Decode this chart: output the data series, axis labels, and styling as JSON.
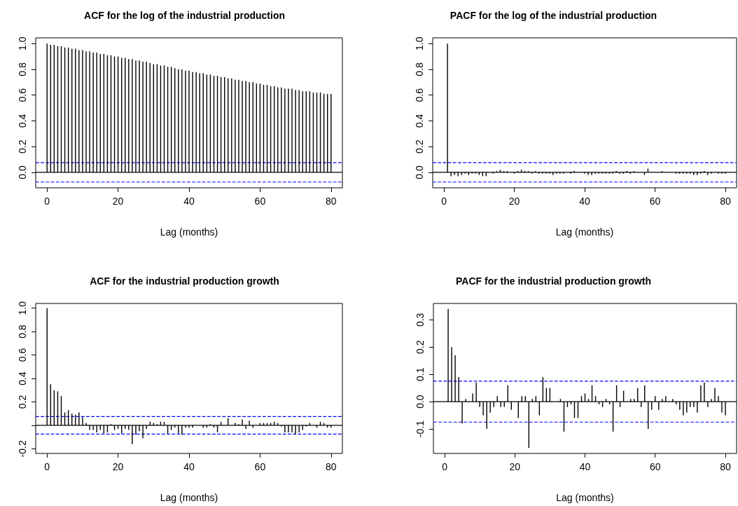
{
  "chart_data": [
    {
      "type": "bar",
      "title": "ACF for the log of the industrial production",
      "xlabel": "Lag (months)",
      "x": [
        0,
        1,
        2,
        3,
        4,
        5,
        6,
        7,
        8,
        9,
        10,
        11,
        12,
        13,
        14,
        15,
        16,
        17,
        18,
        19,
        20,
        21,
        22,
        23,
        24,
        25,
        26,
        27,
        28,
        29,
        30,
        31,
        32,
        33,
        34,
        35,
        36,
        37,
        38,
        39,
        40,
        41,
        42,
        43,
        44,
        45,
        46,
        47,
        48,
        49,
        50,
        51,
        52,
        53,
        54,
        55,
        56,
        57,
        58,
        59,
        60,
        61,
        62,
        63,
        64,
        65,
        66,
        67,
        68,
        69,
        70,
        71,
        72,
        73,
        74,
        75,
        76,
        77,
        78,
        79,
        80
      ],
      "values": [
        1,
        0.99,
        0.99,
        0.98,
        0.98,
        0.97,
        0.97,
        0.96,
        0.96,
        0.95,
        0.95,
        0.94,
        0.94,
        0.93,
        0.93,
        0.92,
        0.92,
        0.91,
        0.91,
        0.9,
        0.9,
        0.89,
        0.89,
        0.88,
        0.88,
        0.87,
        0.87,
        0.86,
        0.86,
        0.85,
        0.84,
        0.84,
        0.83,
        0.83,
        0.82,
        0.82,
        0.81,
        0.8,
        0.8,
        0.79,
        0.79,
        0.78,
        0.78,
        0.77,
        0.77,
        0.76,
        0.76,
        0.75,
        0.75,
        0.74,
        0.74,
        0.73,
        0.73,
        0.72,
        0.72,
        0.71,
        0.71,
        0.7,
        0.7,
        0.69,
        0.69,
        0.68,
        0.68,
        0.67,
        0.67,
        0.66,
        0.66,
        0.65,
        0.65,
        0.65,
        0.64,
        0.64,
        0.63,
        0.63,
        0.63,
        0.62,
        0.62,
        0.62,
        0.61,
        0.61,
        0.61
      ],
      "color": "#000000",
      "xlim": [
        -3.2,
        83.2
      ],
      "xticks": [
        0,
        20,
        40,
        60,
        80
      ],
      "ylim": [
        -0.12,
        1.045
      ],
      "yticks": [
        {
          "value": 0,
          "label": "0.0"
        },
        {
          "value": 0.2,
          "label": "0.2"
        },
        {
          "value": 0.4,
          "label": "0.4"
        },
        {
          "value": 0.6,
          "label": "0.6"
        },
        {
          "value": 0.8,
          "label": "0.8"
        },
        {
          "value": 1,
          "label": "1.0"
        }
      ],
      "ref_lines": [
        {
          "axis": "y",
          "value": 0,
          "color": "#000000",
          "line_style": "solid"
        },
        {
          "axis": "y",
          "value": 0.075,
          "color": "#0000ff",
          "line_style": "dashed"
        },
        {
          "axis": "y",
          "value": -0.075,
          "color": "#0000ff",
          "line_style": "dashed"
        }
      ]
    },
    {
      "type": "bar",
      "title": "PACF for the log of the industrial production",
      "xlabel": "Lag (months)",
      "x": [
        1,
        2,
        3,
        4,
        5,
        6,
        7,
        8,
        9,
        10,
        11,
        12,
        13,
        14,
        15,
        16,
        17,
        18,
        19,
        20,
        21,
        22,
        23,
        24,
        25,
        26,
        27,
        28,
        29,
        30,
        31,
        32,
        33,
        34,
        35,
        36,
        37,
        38,
        39,
        40,
        41,
        42,
        43,
        44,
        45,
        46,
        47,
        48,
        49,
        50,
        51,
        52,
        53,
        54,
        55,
        56,
        57,
        58,
        59,
        60,
        61,
        62,
        63,
        64,
        65,
        66,
        67,
        68,
        69,
        70,
        71,
        72,
        73,
        74,
        75,
        76,
        77,
        78,
        79,
        80
      ],
      "values": [
        1,
        -0.03,
        -0.02,
        -0.03,
        -0.02,
        -0.01,
        -0.02,
        -0.01,
        -0.01,
        -0.02,
        -0.03,
        -0.03,
        0,
        -0.01,
        0.01,
        0.02,
        0.01,
        0.01,
        0,
        -0.01,
        0.01,
        0.02,
        0.01,
        0.01,
        -0.01,
        0.01,
        -0.01,
        -0.01,
        -0.01,
        -0.01,
        -0.02,
        -0.01,
        -0.01,
        -0.01,
        0,
        -0.01,
        0.01,
        0,
        0,
        -0.01,
        -0.02,
        -0.02,
        -0.01,
        -0.01,
        -0.01,
        -0.01,
        -0.01,
        -0.01,
        0.01,
        -0.01,
        -0.01,
        0.01,
        -0.01,
        0.01,
        0,
        0,
        -0.02,
        0.03,
        0,
        0,
        0,
        0.01,
        0,
        0,
        0,
        -0.01,
        -0.01,
        -0.01,
        -0.01,
        -0.01,
        -0.02,
        -0.02,
        -0.01,
        0.01,
        -0.02,
        -0.01,
        0,
        -0.01,
        -0.01,
        -0.01
      ],
      "color": "#000000",
      "xlim": [
        -3.2,
        83.2
      ],
      "xticks": [
        0,
        20,
        40,
        60,
        80
      ],
      "ylim": [
        -0.12,
        1.045
      ],
      "yticks": [
        {
          "value": 0,
          "label": "0.0"
        },
        {
          "value": 0.2,
          "label": "0.2"
        },
        {
          "value": 0.4,
          "label": "0.4"
        },
        {
          "value": 0.6,
          "label": "0.6"
        },
        {
          "value": 0.8,
          "label": "0.8"
        },
        {
          "value": 1,
          "label": "1.0"
        }
      ],
      "ref_lines": [
        {
          "axis": "y",
          "value": 0,
          "color": "#000000",
          "line_style": "solid"
        },
        {
          "axis": "y",
          "value": 0.075,
          "color": "#0000ff",
          "line_style": "dashed"
        },
        {
          "axis": "y",
          "value": -0.075,
          "color": "#0000ff",
          "line_style": "dashed"
        }
      ]
    },
    {
      "type": "bar",
      "title": "ACF for the industrial production growth",
      "xlabel": "Lag (months)",
      "x": [
        0,
        1,
        2,
        3,
        4,
        5,
        6,
        7,
        8,
        9,
        10,
        11,
        12,
        13,
        14,
        15,
        16,
        17,
        18,
        19,
        20,
        21,
        22,
        23,
        24,
        25,
        26,
        27,
        28,
        29,
        30,
        31,
        32,
        33,
        34,
        35,
        36,
        37,
        38,
        39,
        40,
        41,
        42,
        43,
        44,
        45,
        46,
        47,
        48,
        49,
        50,
        51,
        52,
        53,
        54,
        55,
        56,
        57,
        58,
        59,
        60,
        61,
        62,
        63,
        64,
        65,
        66,
        67,
        68,
        69,
        70,
        71,
        72,
        73,
        74,
        75,
        76,
        77,
        78,
        79,
        80
      ],
      "values": [
        1,
        0.35,
        0.3,
        0.29,
        0.25,
        0.11,
        0.13,
        0.1,
        0.09,
        0.11,
        0.07,
        0.02,
        -0.04,
        -0.04,
        -0.06,
        -0.04,
        -0.07,
        -0.06,
        0.01,
        -0.04,
        -0.03,
        -0.07,
        -0.03,
        -0.04,
        -0.16,
        -0.08,
        -0.05,
        -0.11,
        -0.03,
        0.03,
        0.02,
        0.01,
        0.03,
        0.03,
        -0.07,
        -0.04,
        -0.02,
        -0.07,
        -0.08,
        -0.02,
        -0.02,
        -0.02,
        0,
        0,
        -0.02,
        -0.02,
        0.01,
        -0.02,
        -0.06,
        0.03,
        0,
        0.06,
        0,
        0.02,
        0.01,
        0.05,
        -0.03,
        0.04,
        -0.02,
        0,
        0.02,
        0.02,
        0.02,
        0.02,
        0.03,
        0.02,
        -0.01,
        -0.06,
        -0.06,
        -0.06,
        -0.08,
        -0.06,
        -0.04,
        -0.01,
        0.02,
        0,
        -0.02,
        0.03,
        0.02,
        -0.02,
        -0.02
      ],
      "color": "#000000",
      "xlim": [
        -3.2,
        83.2
      ],
      "xticks": [
        0,
        20,
        40,
        60,
        80
      ],
      "ylim": [
        -0.24,
        1.04
      ],
      "yticks": [
        {
          "value": -0.2,
          "label": "-0.2"
        },
        {
          "value": 0,
          "label": null
        },
        {
          "value": 0.2,
          "label": "0.2"
        },
        {
          "value": 0.4,
          "label": "0.4"
        },
        {
          "value": 0.6,
          "label": "0.6"
        },
        {
          "value": 0.8,
          "label": "0.8"
        },
        {
          "value": 1,
          "label": "1.0"
        }
      ],
      "ref_lines": [
        {
          "axis": "y",
          "value": 0,
          "color": "#000000",
          "line_style": "solid"
        },
        {
          "axis": "y",
          "value": 0.075,
          "color": "#0000ff",
          "line_style": "dashed"
        },
        {
          "axis": "y",
          "value": -0.075,
          "color": "#0000ff",
          "line_style": "dashed"
        }
      ]
    },
    {
      "type": "bar",
      "title": "PACF for the industrial production growth",
      "xlabel": "Lag (months)",
      "x": [
        1,
        2,
        3,
        4,
        5,
        6,
        7,
        8,
        9,
        10,
        11,
        12,
        13,
        14,
        15,
        16,
        17,
        18,
        19,
        20,
        21,
        22,
        23,
        24,
        25,
        26,
        27,
        28,
        29,
        30,
        31,
        32,
        33,
        34,
        35,
        36,
        37,
        38,
        39,
        40,
        41,
        42,
        43,
        44,
        45,
        46,
        47,
        48,
        49,
        50,
        51,
        52,
        53,
        54,
        55,
        56,
        57,
        58,
        59,
        60,
        61,
        62,
        63,
        64,
        65,
        66,
        67,
        68,
        69,
        70,
        71,
        72,
        73,
        74,
        75,
        76,
        77,
        78,
        79,
        80
      ],
      "values": [
        0.34,
        0.2,
        0.17,
        0.09,
        -0.08,
        0.01,
        0,
        0.03,
        0.07,
        -0.02,
        -0.05,
        -0.1,
        -0.04,
        -0.02,
        0.02,
        -0.02,
        -0.02,
        0.06,
        -0.03,
        0,
        -0.06,
        0.02,
        0.02,
        -0.17,
        0.01,
        0.02,
        -0.05,
        0.09,
        0.05,
        0.05,
        0,
        0,
        0.01,
        -0.11,
        -0.02,
        -0.01,
        -0.06,
        -0.06,
        0.02,
        0.03,
        0.01,
        0.06,
        0.02,
        -0.01,
        -0.02,
        0.01,
        -0.01,
        -0.11,
        0.06,
        -0.02,
        0.04,
        0,
        0.01,
        0.01,
        0.05,
        -0.02,
        0.06,
        -0.1,
        -0.03,
        0.02,
        -0.03,
        0.01,
        0.02,
        0,
        0.01,
        -0.01,
        -0.03,
        -0.05,
        -0.04,
        -0.02,
        -0.02,
        -0.04,
        0.06,
        0.07,
        -0.02,
        0.01,
        0.05,
        0.02,
        -0.04,
        -0.05
      ],
      "color": "#000000",
      "xlim": [
        -3.2,
        83.2
      ],
      "xticks": [
        0,
        20,
        40,
        60,
        80
      ],
      "ylim": [
        -0.19,
        0.36
      ],
      "yticks": [
        {
          "value": -0.1,
          "label": "-0.1"
        },
        {
          "value": 0,
          "label": "0.0"
        },
        {
          "value": 0.1,
          "label": "0.1"
        },
        {
          "value": 0.2,
          "label": "0.2"
        },
        {
          "value": 0.3,
          "label": "0.3"
        }
      ],
      "ref_lines": [
        {
          "axis": "y",
          "value": 0,
          "color": "#000000",
          "line_style": "solid"
        },
        {
          "axis": "y",
          "value": 0.075,
          "color": "#0000ff",
          "line_style": "dashed"
        },
        {
          "axis": "y",
          "value": -0.075,
          "color": "#0000ff",
          "line_style": "dashed"
        }
      ]
    }
  ]
}
